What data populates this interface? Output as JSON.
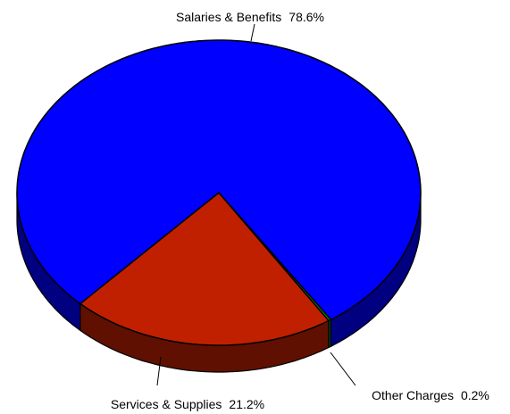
{
  "chart_data": {
    "type": "pie",
    "categories": [
      "Salaries & Benefits",
      "Services & Supplies",
      "Other Charges"
    ],
    "values": [
      78.6,
      21.2,
      0.2
    ],
    "value_labels": [
      "78.6%",
      "21.2%",
      "0.2%"
    ],
    "colors": [
      "#0000ff",
      "#c02000",
      "#00a000"
    ]
  }
}
